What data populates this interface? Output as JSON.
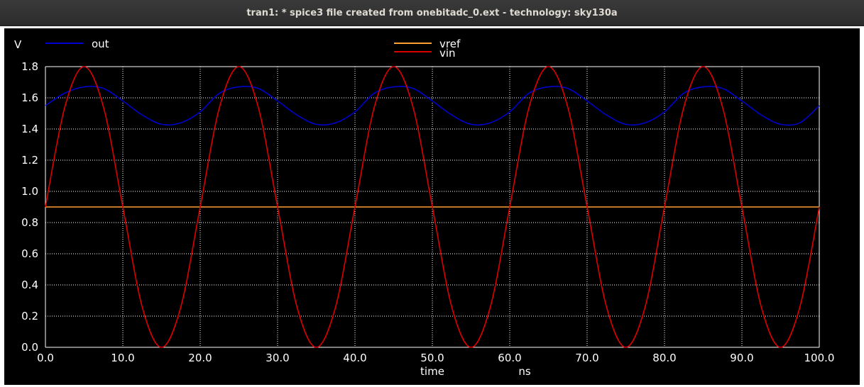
{
  "window": {
    "title": "tran1: * spice3 file created from onebitadc_0.ext - technology: sky130a"
  },
  "chart_data": {
    "type": "line",
    "title": "",
    "xlabel": "time",
    "xunit": "ns",
    "ylabel": "V",
    "xlim": [
      0,
      100
    ],
    "ylim": [
      0,
      1.8
    ],
    "grid": true,
    "xticks": [
      "0.0",
      "10.0",
      "20.0",
      "30.0",
      "40.0",
      "50.0",
      "60.0",
      "70.0",
      "80.0",
      "90.0",
      "100.0"
    ],
    "yticks": [
      "0.0",
      "0.2",
      "0.4",
      "0.6",
      "0.8",
      "1.0",
      "1.2",
      "1.4",
      "1.6",
      "1.8"
    ],
    "legend": [
      "out",
      "vref",
      "vin"
    ],
    "colors": {
      "out": "#0000cc",
      "vref": "#ffa033",
      "vin": "#dd0000",
      "grid": "#ffffff",
      "background": "#000000"
    },
    "x": [
      0,
      2.5,
      5,
      7.5,
      10,
      12.5,
      15,
      17.5,
      20,
      22.5,
      25,
      27.5,
      30,
      32.5,
      35,
      37.5,
      40,
      42.5,
      45,
      47.5,
      50,
      52.5,
      55,
      57.5,
      60,
      62.5,
      65,
      67.5,
      70,
      72.5,
      75,
      77.5,
      80,
      82.5,
      85,
      87.5,
      90,
      92.5,
      95,
      97.5,
      100
    ],
    "series": [
      {
        "name": "out",
        "values": [
          1.55,
          1.63,
          1.67,
          1.66,
          1.58,
          1.49,
          1.43,
          1.44,
          1.51,
          1.63,
          1.67,
          1.66,
          1.58,
          1.49,
          1.43,
          1.44,
          1.51,
          1.63,
          1.67,
          1.66,
          1.58,
          1.49,
          1.43,
          1.44,
          1.51,
          1.63,
          1.67,
          1.66,
          1.58,
          1.49,
          1.43,
          1.44,
          1.51,
          1.63,
          1.67,
          1.66,
          1.58,
          1.49,
          1.43,
          1.44,
          1.55
        ]
      },
      {
        "name": "vref",
        "values": [
          0.9,
          0.9,
          0.9,
          0.9,
          0.9,
          0.9,
          0.9,
          0.9,
          0.9,
          0.9,
          0.9,
          0.9,
          0.9,
          0.9,
          0.9,
          0.9,
          0.9,
          0.9,
          0.9,
          0.9,
          0.9,
          0.9,
          0.9,
          0.9,
          0.9,
          0.9,
          0.9,
          0.9,
          0.9,
          0.9,
          0.9,
          0.9,
          0.9,
          0.9,
          0.9,
          0.9,
          0.9,
          0.9,
          0.9,
          0.9,
          0.9
        ]
      },
      {
        "name": "vin",
        "values": [
          0.9,
          1.54,
          1.8,
          1.54,
          0.9,
          0.26,
          0.0,
          0.26,
          0.9,
          1.54,
          1.8,
          1.54,
          0.9,
          0.26,
          0.0,
          0.26,
          0.9,
          1.54,
          1.8,
          1.54,
          0.9,
          0.26,
          0.0,
          0.26,
          0.9,
          1.54,
          1.8,
          1.54,
          0.9,
          0.26,
          0.0,
          0.26,
          0.9,
          1.54,
          1.8,
          1.54,
          0.9,
          0.26,
          0.0,
          0.26,
          0.9
        ]
      }
    ]
  }
}
